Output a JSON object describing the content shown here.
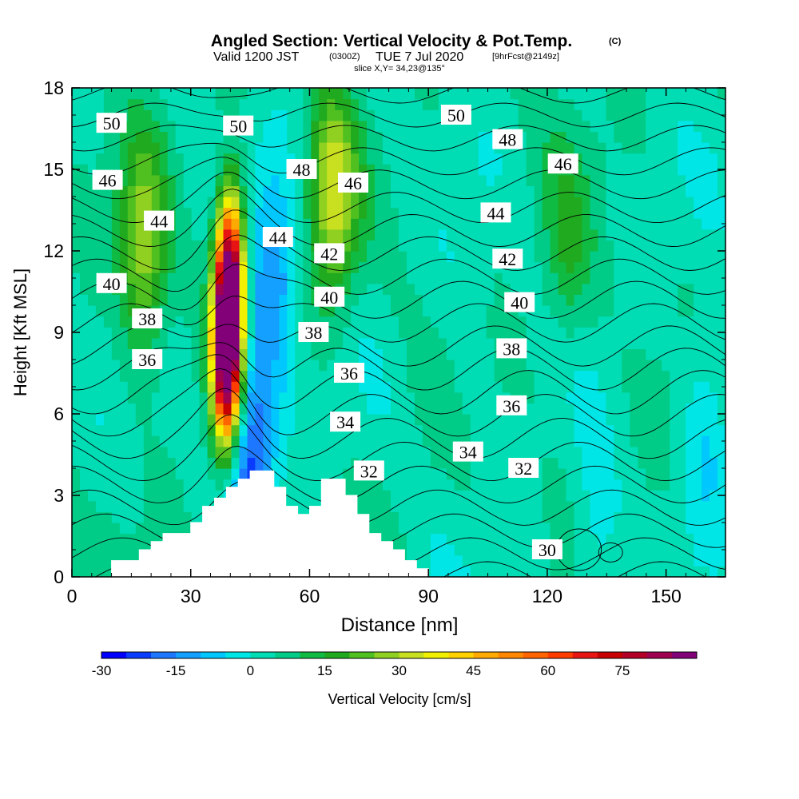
{
  "header": {
    "title_main": "Angled Section: Vertical Velocity & Pot.Temp.",
    "title_unit": "(C)",
    "valid_a": "Valid 1200 JST",
    "valid_b": "(0300Z)",
    "valid_c": "TUE 7 Jul 2020",
    "valid_d": "[9hrFcst@2149z]",
    "slice": "slice X,Y= 34,23@135°"
  },
  "chart_data": {
    "type": "heatmap",
    "xlabel": "Distance [nm]",
    "ylabel": "Height [Kft MSL]",
    "xlim": [
      0,
      165
    ],
    "ylim": [
      0,
      18
    ],
    "x_ticks": [
      "0",
      "30",
      "60",
      "90",
      "120",
      "150"
    ],
    "y_ticks": [
      "0",
      "3",
      "6",
      "9",
      "12",
      "15",
      "18"
    ],
    "colorbar": {
      "label": "Vertical Velocity [cm/s]",
      "ticks": [
        "-30",
        "-15",
        "0",
        "15",
        "30",
        "45",
        "60",
        "75"
      ],
      "min": -30,
      "max": 90,
      "step": 5,
      "colors": [
        "#0000ff",
        "#0a3cff",
        "#1e78ff",
        "#14a0ff",
        "#00c8ff",
        "#00e6e6",
        "#00dcb4",
        "#00cc88",
        "#10bb44",
        "#20aa20",
        "#50c020",
        "#90d020",
        "#c8e020",
        "#f0f000",
        "#ffd200",
        "#ffaa00",
        "#ff8800",
        "#ff6400",
        "#ff3c00",
        "#e81414",
        "#c80000",
        "#b40028",
        "#a00050",
        "#820078"
      ]
    },
    "vertical_velocity_features": [
      {
        "x": 39,
        "z": 8.0,
        "peak": 88
      },
      {
        "x": 40,
        "z": 11.0,
        "peak": 78
      },
      {
        "x": 66,
        "z": 14.0,
        "peak": 28
      },
      {
        "x": 18,
        "z": 12.0,
        "peak": 24
      },
      {
        "x": 51,
        "z": 11.0,
        "peak": -18
      },
      {
        "x": 45,
        "z": 4.5,
        "peak": -28
      },
      {
        "x": 125,
        "z": 12.0,
        "peak": 10
      },
      {
        "x": 100,
        "z": 9.0,
        "peak": -4
      },
      {
        "x": 160,
        "z": 5.5,
        "peak": -10
      },
      {
        "x": 132,
        "z": 1.2,
        "peak": -8
      }
    ],
    "terrain": [
      [
        10,
        0.6
      ],
      [
        17,
        0.6
      ],
      [
        17,
        1.0
      ],
      [
        20,
        1.0
      ],
      [
        20,
        1.3
      ],
      [
        23,
        1.3
      ],
      [
        23,
        1.6
      ],
      [
        30,
        1.6
      ],
      [
        30,
        2.0
      ],
      [
        33,
        2.0
      ],
      [
        33,
        2.6
      ],
      [
        36,
        2.6
      ],
      [
        36,
        2.9
      ],
      [
        39,
        2.9
      ],
      [
        39,
        3.3
      ],
      [
        42,
        3.3
      ],
      [
        42,
        3.6
      ],
      [
        45,
        3.6
      ],
      [
        45,
        3.9
      ],
      [
        51,
        3.9
      ],
      [
        51,
        3.3
      ],
      [
        54,
        3.3
      ],
      [
        54,
        2.6
      ],
      [
        57,
        2.6
      ],
      [
        57,
        2.3
      ],
      [
        60,
        2.3
      ],
      [
        60,
        2.6
      ],
      [
        63,
        2.6
      ],
      [
        63,
        3.6
      ],
      [
        69,
        3.6
      ],
      [
        69,
        3.0
      ],
      [
        72,
        3.0
      ],
      [
        72,
        2.3
      ],
      [
        75,
        2.3
      ],
      [
        75,
        1.6
      ],
      [
        78,
        1.6
      ],
      [
        78,
        1.3
      ],
      [
        81,
        1.3
      ],
      [
        81,
        1.0
      ],
      [
        84,
        1.0
      ],
      [
        84,
        0.6
      ],
      [
        87,
        0.6
      ],
      [
        87,
        0.3
      ],
      [
        90,
        0.3
      ]
    ],
    "theta_contours": {
      "levels": [
        30,
        31,
        32,
        33,
        34,
        35,
        36,
        37,
        38,
        39,
        40,
        41,
        42,
        43,
        44,
        45,
        46,
        47,
        48,
        49,
        50,
        51
      ],
      "labels": [
        {
          "text": "50",
          "x": 10,
          "z": 16.7
        },
        {
          "text": "50",
          "x": 42,
          "z": 16.6
        },
        {
          "text": "50",
          "x": 97,
          "z": 17.0
        },
        {
          "text": "48",
          "x": 58,
          "z": 15.0
        },
        {
          "text": "48",
          "x": 110,
          "z": 16.1
        },
        {
          "text": "46",
          "x": 9,
          "z": 14.6
        },
        {
          "text": "46",
          "x": 71,
          "z": 14.5
        },
        {
          "text": "46",
          "x": 124,
          "z": 15.2
        },
        {
          "text": "44",
          "x": 22,
          "z": 13.1
        },
        {
          "text": "44",
          "x": 52,
          "z": 12.5
        },
        {
          "text": "44",
          "x": 107,
          "z": 13.4
        },
        {
          "text": "42",
          "x": 65,
          "z": 11.9
        },
        {
          "text": "42",
          "x": 110,
          "z": 11.7
        },
        {
          "text": "40",
          "x": 10,
          "z": 10.8
        },
        {
          "text": "40",
          "x": 65,
          "z": 10.3
        },
        {
          "text": "40",
          "x": 113,
          "z": 10.1
        },
        {
          "text": "38",
          "x": 19,
          "z": 9.5
        },
        {
          "text": "38",
          "x": 61,
          "z": 9.0
        },
        {
          "text": "38",
          "x": 111,
          "z": 8.4
        },
        {
          "text": "36",
          "x": 19,
          "z": 8.0
        },
        {
          "text": "36",
          "x": 70,
          "z": 7.5
        },
        {
          "text": "36",
          "x": 111,
          "z": 6.3
        },
        {
          "text": "34",
          "x": 69,
          "z": 5.7
        },
        {
          "text": "34",
          "x": 100,
          "z": 4.6
        },
        {
          "text": "32",
          "x": 75,
          "z": 3.9
        },
        {
          "text": "32",
          "x": 114,
          "z": 4.0
        },
        {
          "text": "30",
          "x": 120,
          "z": 1.0
        }
      ]
    }
  }
}
